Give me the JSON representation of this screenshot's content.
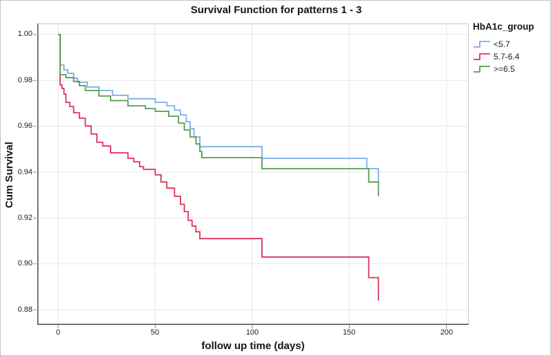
{
  "chart_data": {
    "type": "line",
    "subtype": "kaplan-meier-step-survival",
    "title": "Survival Function for patterns 1 - 3",
    "xlabel": "follow up time (days)",
    "ylabel": "Cum Survival",
    "xlim": [
      -10.7,
      211.5
    ],
    "ylim": [
      0.8734,
      1.0048
    ],
    "grid": true,
    "legend": {
      "title": "HbA1c_group",
      "position": "top-right-outside"
    },
    "xticks": {
      "values": [
        0,
        50,
        100,
        150,
        200
      ],
      "labels": [
        "0",
        "50",
        "100",
        "150",
        "200"
      ]
    },
    "yticks": {
      "values": [
        1.0,
        0.98,
        0.96,
        0.94,
        0.92,
        0.9,
        0.88
      ],
      "labels": [
        "1.00",
        "0.98",
        "0.96",
        "0.94",
        "0.92",
        "0.90",
        "0.88"
      ]
    },
    "series": [
      {
        "name": "<5.7",
        "color": "#7CADE2",
        "points": [
          [
            0,
            1.0
          ],
          [
            1,
            0.9867
          ],
          [
            3,
            0.9846
          ],
          [
            5,
            0.9831
          ],
          [
            8,
            0.981
          ],
          [
            10,
            0.9792
          ],
          [
            15,
            0.9771
          ],
          [
            21,
            0.9756
          ],
          [
            28,
            0.9735
          ],
          [
            36,
            0.972
          ],
          [
            50,
            0.9704
          ],
          [
            56,
            0.9689
          ],
          [
            60,
            0.967
          ],
          [
            63,
            0.965
          ],
          [
            66,
            0.962
          ],
          [
            68,
            0.959
          ],
          [
            70,
            0.9553
          ],
          [
            73,
            0.9511
          ],
          [
            105,
            0.946
          ],
          [
            159,
            0.9415
          ],
          [
            165,
            0.9357
          ]
        ]
      },
      {
        "name": "5.7-6.4",
        "color": "#DE3156",
        "points": [
          [
            0,
            1.0
          ],
          [
            1,
            0.978
          ],
          [
            2,
            0.9765
          ],
          [
            3,
            0.974
          ],
          [
            4,
            0.9704
          ],
          [
            6,
            0.9686
          ],
          [
            8,
            0.9659
          ],
          [
            11,
            0.9635
          ],
          [
            14,
            0.9601
          ],
          [
            17,
            0.9566
          ],
          [
            20,
            0.953
          ],
          [
            23,
            0.9514
          ],
          [
            27,
            0.9484
          ],
          [
            36,
            0.946
          ],
          [
            39,
            0.9445
          ],
          [
            42,
            0.9424
          ],
          [
            44,
            0.9412
          ],
          [
            50,
            0.9388
          ],
          [
            53,
            0.9357
          ],
          [
            56,
            0.933
          ],
          [
            60,
            0.9295
          ],
          [
            63,
            0.926
          ],
          [
            65,
            0.9228
          ],
          [
            67,
            0.919
          ],
          [
            69,
            0.9165
          ],
          [
            71,
            0.914
          ],
          [
            73,
            0.911
          ],
          [
            105,
            0.903
          ],
          [
            160,
            0.894
          ],
          [
            165,
            0.884
          ]
        ]
      },
      {
        "name": ">=6.5",
        "color": "#509E52",
        "points": [
          [
            0,
            1.0
          ],
          [
            1,
            0.9825
          ],
          [
            4,
            0.9812
          ],
          [
            8,
            0.9795
          ],
          [
            11,
            0.9777
          ],
          [
            14,
            0.9756
          ],
          [
            21,
            0.9732
          ],
          [
            27,
            0.9712
          ],
          [
            36,
            0.9689
          ],
          [
            45,
            0.9677
          ],
          [
            50,
            0.9665
          ],
          [
            57,
            0.9644
          ],
          [
            62,
            0.9614
          ],
          [
            65,
            0.9584
          ],
          [
            68,
            0.9553
          ],
          [
            71,
            0.9523
          ],
          [
            73,
            0.949
          ],
          [
            74,
            0.9463
          ],
          [
            105,
            0.9415
          ],
          [
            160,
            0.9357
          ],
          [
            165,
            0.9295
          ]
        ]
      }
    ],
    "style": {
      "grid_color": "#e7e7e7",
      "axis_color": "#4d4d4d",
      "frame_light_color": "#c9c9c9",
      "tick_color": "#8c8c8c",
      "line_width": 1.8
    }
  }
}
